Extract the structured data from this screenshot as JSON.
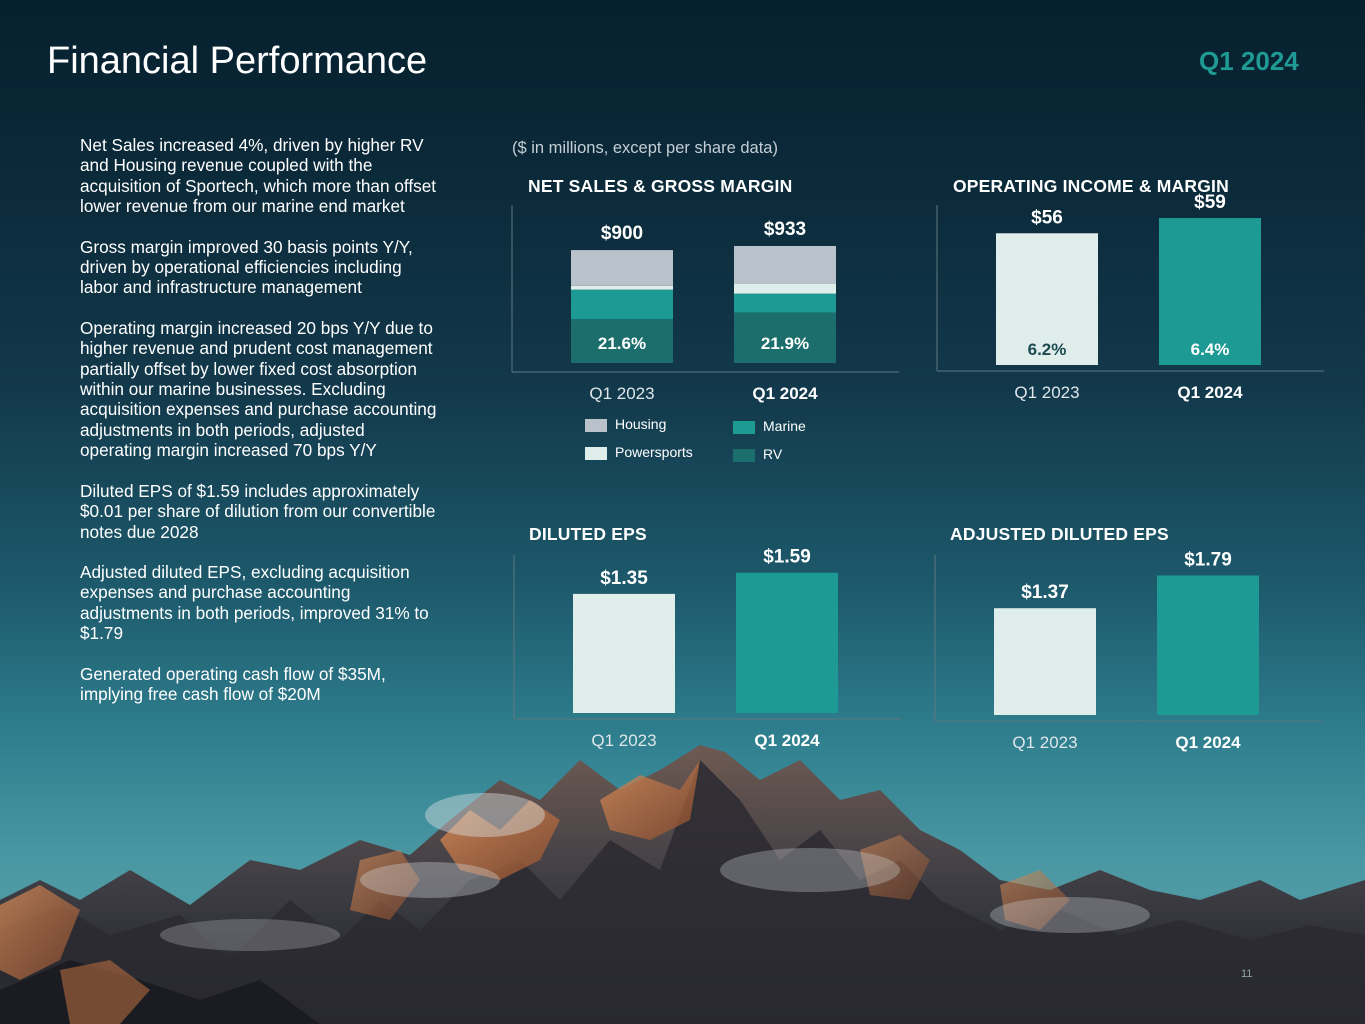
{
  "header": {
    "title": "Financial Performance",
    "period": "Q1 2024"
  },
  "bullets": [
    "Net Sales increased 4%, driven by higher RV and Housing revenue coupled with the acquisition of Sportech, which more than offset lower revenue from our marine end market",
    "Gross margin improved 30 basis points Y/Y, driven by operational efficiencies including labor and infrastructure management",
    "Operating margin increased 20 bps Y/Y due to higher revenue and prudent cost management partially offset by lower fixed cost absorption within our marine businesses. Excluding acquisition expenses and purchase accounting adjustments in both periods, adjusted operating margin increased 70 bps Y/Y",
    "Diluted EPS of $1.59 includes approximately $0.01 per share of dilution from our convertible notes due 2028",
    "Adjusted diluted EPS, excluding acquisition expenses and purchase accounting adjustments in both periods, improved 31% to $1.79",
    "Generated operating cash flow of $35M, implying free cash flow of $20M"
  ],
  "units_note": "($ in millions, except per share data)",
  "colors": {
    "housing": "#b9c1ca",
    "powersports": "#dfeeea",
    "marine": "#1e9a95",
    "rv": "#1b6e6b",
    "q1_2023_bar": "#dfeeea",
    "q1_2024_bar": "#1e9a95",
    "accent": "#1f9a94"
  },
  "page_number": "11",
  "chart_data": [
    {
      "id": "net-sales",
      "type": "bar",
      "stacked": true,
      "title": "NET SALES & GROSS MARGIN",
      "categories": [
        "Q1 2023",
        "Q1 2024"
      ],
      "totals": [
        "$900",
        "$933"
      ],
      "total_values": [
        900,
        933
      ],
      "margins": [
        "21.6%",
        "21.9%"
      ],
      "series": [
        {
          "name": "RV",
          "color": "#1b6e6b",
          "values": [
            350,
            403
          ]
        },
        {
          "name": "Marine",
          "color": "#1e9a95",
          "values": [
            235,
            150
          ]
        },
        {
          "name": "Powersports",
          "color": "#dfeeea",
          "values": [
            30,
            80
          ]
        },
        {
          "name": "Housing",
          "color": "#b9c1ca",
          "values": [
            285,
            300
          ]
        }
      ],
      "legend": [
        "Housing",
        "Powersports",
        "Marine",
        "RV"
      ],
      "ylim": [
        0,
        1000
      ]
    },
    {
      "id": "operating-income",
      "type": "bar",
      "title": "OPERATING INCOME & MARGIN",
      "categories": [
        "Q1 2023",
        "Q1 2024"
      ],
      "values": [
        56,
        59
      ],
      "labels": [
        "$56",
        "$59"
      ],
      "margins": [
        "6.2%",
        "6.4%"
      ],
      "ylim": [
        30,
        60
      ]
    },
    {
      "id": "diluted-eps",
      "type": "bar",
      "title": "DILUTED EPS",
      "categories": [
        "Q1 2023",
        "Q1 2024"
      ],
      "values": [
        1.35,
        1.59
      ],
      "labels": [
        "$1.35",
        "$1.59"
      ],
      "ylim": [
        0,
        1.7
      ]
    },
    {
      "id": "adjusted-eps",
      "type": "bar",
      "title": "ADJUSTED DILUTED EPS",
      "categories": [
        "Q1 2023",
        "Q1 2024"
      ],
      "values": [
        1.37,
        1.79
      ],
      "labels": [
        "$1.37",
        "$1.79"
      ],
      "ylim": [
        0,
        1.95
      ]
    }
  ]
}
